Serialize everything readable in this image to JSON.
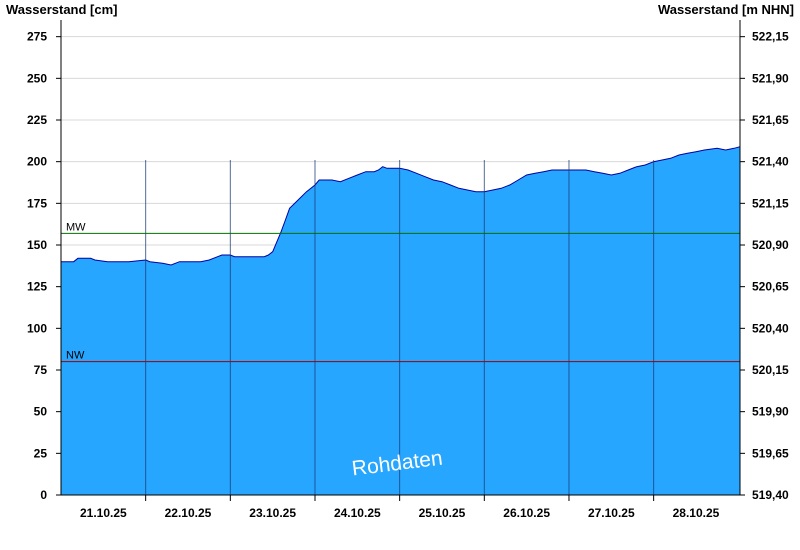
{
  "chart_data": {
    "type": "area",
    "left_axis_label": "Wasserstand [cm]",
    "right_axis_label": "Wasserstand [m NHN]",
    "y_left_ticks": [
      "0",
      "25",
      "50",
      "75",
      "100",
      "125",
      "150",
      "175",
      "200",
      "225",
      "250",
      "275"
    ],
    "y_left_range": [
      0,
      285
    ],
    "y_right_ticks": [
      "519,40",
      "519,65",
      "519,90",
      "520,15",
      "520,40",
      "520,65",
      "520,90",
      "521,15",
      "521,40",
      "521,65",
      "521,90",
      "522,15"
    ],
    "x_ticks": [
      "21.10.25",
      "22.10.25",
      "23.10.25",
      "24.10.25",
      "25.10.25",
      "26.10.25",
      "27.10.25",
      "28.10.25"
    ],
    "x_range_days": [
      0,
      8.02
    ],
    "day_boundaries": [
      1,
      2,
      3,
      4,
      5,
      6,
      7
    ],
    "reference_lines": [
      {
        "name": "MW",
        "value": 157,
        "color": "#007000"
      },
      {
        "name": "NW",
        "value": 80,
        "color": "#a00000"
      }
    ],
    "series": [
      {
        "fill": "#27a6ff",
        "stroke": "#0000a0",
        "points": [
          [
            0,
            140
          ],
          [
            0.15,
            140
          ],
          [
            0.2,
            142
          ],
          [
            0.35,
            142
          ],
          [
            0.4,
            141
          ],
          [
            0.55,
            140
          ],
          [
            0.8,
            140
          ],
          [
            1.0,
            141
          ],
          [
            1.05,
            140
          ],
          [
            1.2,
            139
          ],
          [
            1.3,
            138
          ],
          [
            1.4,
            140
          ],
          [
            1.5,
            140
          ],
          [
            1.65,
            140
          ],
          [
            1.75,
            141
          ],
          [
            1.85,
            143
          ],
          [
            1.9,
            144
          ],
          [
            2.0,
            144
          ],
          [
            2.05,
            143
          ],
          [
            2.2,
            143
          ],
          [
            2.4,
            143
          ],
          [
            2.45,
            144
          ],
          [
            2.5,
            146
          ],
          [
            2.55,
            152
          ],
          [
            2.6,
            158
          ],
          [
            2.65,
            165
          ],
          [
            2.7,
            172
          ],
          [
            2.8,
            177
          ],
          [
            2.9,
            182
          ],
          [
            3.0,
            186
          ],
          [
            3.05,
            189
          ],
          [
            3.2,
            189
          ],
          [
            3.3,
            188
          ],
          [
            3.4,
            190
          ],
          [
            3.5,
            192
          ],
          [
            3.6,
            194
          ],
          [
            3.7,
            194
          ],
          [
            3.75,
            195
          ],
          [
            3.8,
            197
          ],
          [
            3.85,
            196
          ],
          [
            4.0,
            196
          ],
          [
            4.1,
            195
          ],
          [
            4.2,
            193
          ],
          [
            4.3,
            191
          ],
          [
            4.4,
            189
          ],
          [
            4.5,
            188
          ],
          [
            4.6,
            186
          ],
          [
            4.7,
            184
          ],
          [
            4.8,
            183
          ],
          [
            4.9,
            182
          ],
          [
            5.0,
            182
          ],
          [
            5.1,
            183
          ],
          [
            5.2,
            184
          ],
          [
            5.3,
            186
          ],
          [
            5.4,
            189
          ],
          [
            5.5,
            192
          ],
          [
            5.6,
            193
          ],
          [
            5.7,
            194
          ],
          [
            5.8,
            195
          ],
          [
            6.0,
            195
          ],
          [
            6.2,
            195
          ],
          [
            6.3,
            194
          ],
          [
            6.4,
            193
          ],
          [
            6.5,
            192
          ],
          [
            6.6,
            193
          ],
          [
            6.7,
            195
          ],
          [
            6.8,
            197
          ],
          [
            6.9,
            198
          ],
          [
            7.0,
            200
          ],
          [
            7.1,
            201
          ],
          [
            7.2,
            202
          ],
          [
            7.3,
            204
          ],
          [
            7.4,
            205
          ],
          [
            7.5,
            206
          ],
          [
            7.6,
            207
          ],
          [
            7.75,
            208
          ],
          [
            7.85,
            207
          ],
          [
            7.95,
            208
          ],
          [
            8.02,
            209
          ]
        ]
      }
    ],
    "watermark": "Rohdaten"
  }
}
